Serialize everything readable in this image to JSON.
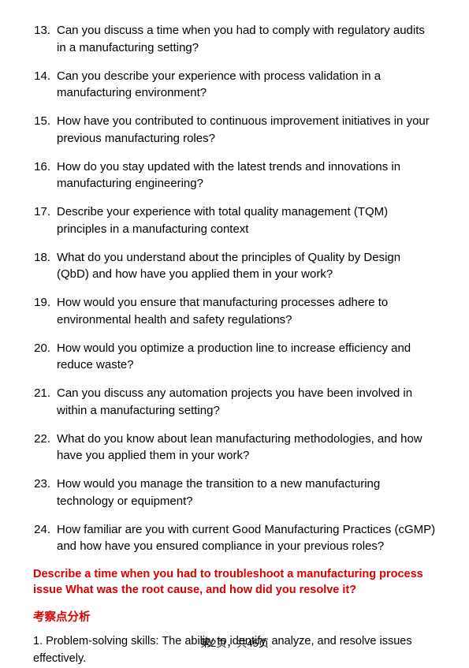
{
  "questions": [
    {
      "num": "13.",
      "text": "Can you discuss a time when you had to comply with regulatory audits in a manufacturing setting?"
    },
    {
      "num": "14.",
      "text": "Can you describe your experience with process validation in a manufacturing environment?"
    },
    {
      "num": "15.",
      "text": "How have you contributed to continuous improvement initiatives in your previous manufacturing roles?"
    },
    {
      "num": "16.",
      "text": "How do you stay updated with the latest trends and innovations in manufacturing engineering?"
    },
    {
      "num": "17.",
      "text": "Describe your experience with total quality management (TQM) principles in a manufacturing context"
    },
    {
      "num": "18.",
      "text": "What do you understand about the principles of Quality by Design (QbD) and how have you applied them in your work?"
    },
    {
      "num": "19.",
      "text": "How would you ensure that manufacturing processes adhere to environmental health and safety regulations?"
    },
    {
      "num": "20.",
      "text": "How would you optimize a production line to increase efficiency and reduce waste?"
    },
    {
      "num": "21.",
      "text": "Can you discuss any automation projects you have been involved in within a manufacturing setting?"
    },
    {
      "num": "22.",
      "text": "What do you know about lean manufacturing methodologies, and how have you applied them in your work?"
    },
    {
      "num": "23.",
      "text": "How would you manage the transition to a new manufacturing technology or equipment?"
    },
    {
      "num": "24.",
      "text": "How familiar are you with current Good Manufacturing Practices (cGMP) and how have you ensured compliance in your previous roles?"
    }
  ],
  "red_heading": "Describe a time when you had to troubleshoot a manufacturing process issue What was the root cause, and how did you resolve it?",
  "red_subheading": "考察点分析",
  "body_text": "1. Problem-solving skills: The ability to identify, analyze, and resolve issues effectively.",
  "footer": "第2页，共45页",
  "colors": {
    "text": "#000000",
    "red": "#d80000",
    "background": "#ffffff"
  },
  "typography": {
    "body_fontsize": 15,
    "red_fontsize": 14.5,
    "footer_fontsize": 13
  }
}
